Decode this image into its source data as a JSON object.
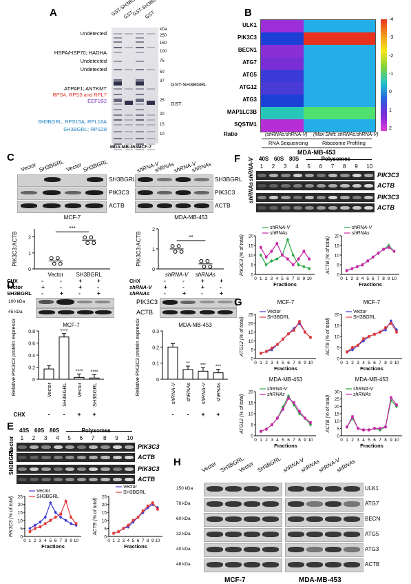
{
  "panelA": {
    "label": "A",
    "lanes": [
      "GST-SH3BGRL",
      "GST",
      "GST-SH3BGRL",
      "GST"
    ],
    "kda": [
      "kDa",
      "250",
      "150",
      "100",
      "75",
      "50",
      "37",
      "25",
      "20",
      "15",
      "10"
    ],
    "bands_left": [
      {
        "text": "Undetected",
        "color": "#000"
      },
      {
        "text": "HSPA/HSP70; HADHA",
        "color": "#000"
      },
      {
        "text": "Undetected",
        "color": "#000"
      },
      {
        "text": "Undetected",
        "color": "#000"
      },
      {
        "text": "ATPAF1; ANTKMT",
        "color": "#000"
      },
      {
        "text": "RPS4, RPS3 and RPL7",
        "color": "#e0301e"
      },
      {
        "text": "EEF1B2",
        "color": "#6a2fb0"
      },
      {
        "text": "SH3BGRL; RPS15A; RPL18A",
        "color": "#1f7fc4"
      },
      {
        "text": "SH3BGRL; RPS28",
        "color": "#1f7fc4"
      }
    ],
    "right_labels": [
      "GST-SH3BGRL",
      "GST"
    ],
    "cells": [
      "MDA-MB-453",
      "MCF-7"
    ]
  },
  "panelB": {
    "label": "B",
    "genes": [
      "ULK1",
      "PIK3C3",
      "BECN1",
      "ATG7",
      "ATG5",
      "ATG12",
      "ATG3",
      "MAP1LC3B",
      "SQSTM1"
    ],
    "ratio_label": "Ratio",
    "col1": "(shRNAs:shRNA-V)",
    "col2": "(Max Shift: shRNAs:shRNA-V)",
    "method1": "RNA Sequencing",
    "method2": "Ribosome Profiling",
    "cell": "MDA-MB-453",
    "scale": [
      "-4",
      "-3",
      "-2",
      "-1",
      "0",
      "1",
      "2"
    ]
  },
  "panelC": {
    "label": "C",
    "left_lanes": [
      "Vector",
      "SH3BGRL",
      "Vector",
      "SH3BGRL"
    ],
    "right_lanes": [
      "shRNA-V",
      "shRNAs",
      "shRNA-V",
      "shRNAs"
    ],
    "proteins": [
      "SH3BGRL-GFP",
      "PIK3C3",
      "ACTB"
    ],
    "proteins_right": [
      "SH3BGRL",
      "PIK3C3",
      "ACTB"
    ],
    "left_chart": {
      "title": "MCF-7",
      "ylabel": "PIK3C3:ACTB",
      "sig": "***",
      "categories": [
        "Vector",
        "SH3BGRL"
      ]
    },
    "right_chart": {
      "title": "MDA-MB-453",
      "ylabel": "PIK3C3:ACTB",
      "sig": "**",
      "categories": [
        "shRNA-V",
        "shRNAs"
      ]
    }
  },
  "panelD": {
    "label": "D",
    "left_rows": [
      {
        "name": "CHX",
        "vals": [
          "-",
          "-",
          "+",
          "+"
        ]
      },
      {
        "name": "Vector",
        "vals": [
          "+",
          "-",
          "+",
          "-"
        ]
      },
      {
        "name": "SH3BGRL",
        "vals": [
          "-",
          "+",
          "-",
          "+"
        ]
      }
    ],
    "right_rows": [
      {
        "name": "CHX",
        "vals": [
          "-",
          "-",
          "+",
          "+"
        ]
      },
      {
        "name": "shRNA-V",
        "vals": [
          "+",
          "-",
          "+",
          "-"
        ]
      },
      {
        "name": "shRNAs",
        "vals": [
          "-",
          "+",
          "-",
          "+"
        ]
      }
    ],
    "left_kda": [
      "100 kDa",
      "45 kDa"
    ],
    "right_proteins": [
      "PIK3C3",
      "ACTB"
    ],
    "left_chart": {
      "title": "MCF-7",
      "ylabel": "Relative PIK3C3 protein expression",
      "categories": [
        "Vector",
        "SH3BGRL",
        "Vector",
        "SH3BGRL"
      ],
      "chx": [
        "-",
        "-",
        "+",
        "+"
      ],
      "sig": [
        "",
        "****",
        "****",
        "****"
      ]
    },
    "right_chart": {
      "title": "MDA-MB-453",
      "ylabel": "Relative PIK3C3 protein expression",
      "categories": [
        "shRNA-V",
        "shRNAs",
        "shRNA-V",
        "shRNAs"
      ],
      "chx": [
        "-",
        "-",
        "+",
        "+"
      ],
      "sig": [
        "",
        "**",
        "***",
        "***"
      ]
    },
    "chx_label": "CHX"
  },
  "panelE": {
    "label": "E",
    "fractions_header": [
      "40S",
      "60S",
      "80S",
      "Polysomes"
    ],
    "fraction_nums": [
      "1",
      "2",
      "3",
      "4",
      "5",
      "6",
      "7",
      "8",
      "9",
      "10"
    ],
    "rows": [
      {
        "group": "Vector",
        "genes": [
          "PIK3C3",
          "ACTB"
        ]
      },
      {
        "group": "SH3BGRL",
        "genes": [
          "PIK3C3",
          "ACTB"
        ]
      }
    ],
    "legend": [
      "Vector",
      "SH3BGRL"
    ],
    "xlabel": "Fractions",
    "ylabel1": "PIK3C3 (% of total)",
    "ylabel2": "ACTB (% of total)"
  },
  "panelF": {
    "label": "F",
    "rows": [
      {
        "group": "shRNA-V",
        "genes": [
          "PIK3C3",
          "ACTB"
        ]
      },
      {
        "group": "shRNAs",
        "genes": [
          "PIK3C3",
          "ACTB"
        ]
      }
    ],
    "legend": [
      "shRNA-V",
      "shRNAs"
    ],
    "xlabel": "Fractions",
    "ylabel1": "PIK3C3 (% of total)",
    "ylabel2": "ACTB (% of total)"
  },
  "panelG": {
    "label": "G",
    "charts": [
      {
        "title": "MCF-7",
        "ylabel": "ATG12 (% of total)",
        "legend": [
          "Vector",
          "SH3BGRL"
        ]
      },
      {
        "title": "MCF-7",
        "ylabel": "ACTB (% of total)",
        "legend": [
          "Vector",
          "SH3BGRL"
        ]
      },
      {
        "title": "MDA-MB-453",
        "ylabel": "ATG12 (% of total)",
        "legend": [
          "shRNA-V",
          "shRNAs"
        ]
      },
      {
        "title": "MDA-MB-453",
        "ylabel": "ACTB (% of total)",
        "legend": [
          "shRNA-V",
          "shRNAs"
        ]
      }
    ],
    "xlabel": "Fractions"
  },
  "panelH": {
    "label": "H",
    "left_lanes": [
      "Vector",
      "SH3BGRL",
      "Vector",
      "SH3BGRL"
    ],
    "right_lanes": [
      "shRNA-V",
      "shRNAs",
      "shRNA-V",
      "shRNAs"
    ],
    "kda": [
      "150 kDa",
      "78 kDa",
      "60 kDa",
      "32 kDa",
      "40 kDa",
      "48 kDa"
    ],
    "proteins": [
      "ULK1",
      "ATG7",
      "BECN",
      "ATG5",
      "ATG3",
      "ACTB"
    ],
    "cells": [
      "MCF-7",
      "MDA-MB-453"
    ]
  },
  "chart_data": [
    {
      "type": "scatter",
      "title": "MCF-7",
      "ylabel": "PIK3C3:ACTB",
      "categories": [
        "Vector",
        "SH3BGRL"
      ],
      "values": [
        0.5,
        1.8
      ],
      "ylim": [
        0,
        2.5
      ]
    },
    {
      "type": "scatter",
      "title": "MDA-MB-453",
      "ylabel": "PIK3C3:ACTB",
      "categories": [
        "shRNA-V",
        "shRNAs"
      ],
      "values": [
        1.0,
        0.25
      ],
      "ylim": [
        0,
        2
      ]
    },
    {
      "type": "bar",
      "title": "MCF-7",
      "ylabel": "Relative PIK3C3 protein expression",
      "categories": [
        "Vector",
        "SH3BGRL",
        "Vector",
        "SH3BGRL"
      ],
      "values": [
        0.17,
        0.7,
        0.03,
        0.02
      ],
      "ylim": [
        0,
        0.8
      ]
    },
    {
      "type": "bar",
      "title": "MDA-MB-453",
      "ylabel": "Relative PIK3C3 protein expression",
      "categories": [
        "shRNA-V",
        "shRNAs",
        "shRNA-V",
        "shRNAs"
      ],
      "values": [
        0.2,
        0.06,
        0.05,
        0.04
      ],
      "ylim": [
        0,
        0.3
      ]
    },
    {
      "type": "line",
      "ylabel": "PIK3C3 (% of total)",
      "x": [
        1,
        2,
        3,
        4,
        5,
        6,
        7,
        8,
        9,
        10
      ],
      "ylim": [
        0,
        25
      ],
      "series": [
        {
          "name": "Vector",
          "values": [
            5,
            7,
            9,
            12,
            21,
            15,
            12,
            10,
            8,
            7
          ]
        },
        {
          "name": "SH3BGRL",
          "values": [
            3,
            5,
            6,
            8,
            10,
            12,
            14,
            22,
            12,
            8
          ]
        }
      ]
    },
    {
      "type": "line",
      "ylabel": "ACTB (% of total)",
      "x": [
        1,
        2,
        3,
        4,
        5,
        6,
        7,
        8,
        9,
        10
      ],
      "ylim": [
        0,
        25
      ],
      "series": [
        {
          "name": "Vector",
          "values": [
            2,
            3,
            5,
            6,
            9,
            12,
            15,
            18,
            20,
            18
          ]
        },
        {
          "name": "SH3BGRL",
          "values": [
            2,
            3,
            5,
            7,
            10,
            12,
            16,
            19,
            21,
            17
          ]
        }
      ]
    },
    {
      "type": "line",
      "ylabel": "PIK3C3 (% of total)",
      "x": [
        1,
        2,
        3,
        4,
        5,
        6,
        7,
        8,
        9,
        10
      ],
      "ylim": [
        0,
        20
      ],
      "series": [
        {
          "name": "shRNA-V",
          "values": [
            10,
            5,
            7,
            8,
            10,
            18,
            10,
            5,
            4,
            3
          ]
        },
        {
          "name": "shRNAs",
          "values": [
            14,
            9,
            12,
            16,
            10,
            8,
            5,
            8,
            12,
            8
          ]
        }
      ]
    },
    {
      "type": "line",
      "ylabel": "ACTB (% of total)",
      "x": [
        1,
        2,
        3,
        4,
        5,
        6,
        7,
        8,
        9,
        10
      ],
      "ylim": [
        0,
        20
      ],
      "series": [
        {
          "name": "shRNA-V",
          "values": [
            2,
            3,
            4,
            5,
            7,
            9,
            11,
            13,
            15,
            12
          ]
        },
        {
          "name": "shRNAs",
          "values": [
            2,
            3,
            4,
            5,
            7,
            9,
            11,
            13,
            14,
            12
          ]
        }
      ]
    },
    {
      "type": "line",
      "title": "MCF-7",
      "ylabel": "ATG12 (% of total)",
      "x": [
        1,
        2,
        3,
        4,
        5,
        6,
        7,
        8,
        9,
        10
      ],
      "ylim": [
        0,
        25
      ],
      "series": [
        {
          "name": "Vector",
          "values": [
            3,
            4,
            5,
            8,
            11,
            14,
            17,
            20,
            15,
            12
          ]
        },
        {
          "name": "SH3BGRL",
          "values": [
            3,
            4,
            6,
            8,
            11,
            14,
            16,
            21,
            15,
            12
          ]
        }
      ]
    },
    {
      "type": "line",
      "title": "MCF-7",
      "ylabel": "ACTB (% of total)",
      "x": [
        1,
        2,
        3,
        4,
        5,
        6,
        7,
        8,
        9,
        10
      ],
      "ylim": [
        0,
        20
      ],
      "series": [
        {
          "name": "Vector",
          "values": [
            3,
            4,
            6,
            8,
            10,
            11,
            12,
            13,
            17,
            13
          ]
        },
        {
          "name": "SH3BGRL",
          "values": [
            3,
            5,
            6,
            9,
            10,
            11,
            12,
            14,
            16,
            12
          ]
        }
      ]
    },
    {
      "type": "line",
      "title": "MDA-MB-453",
      "ylabel": "ATG12 (% of total)",
      "x": [
        1,
        2,
        3,
        4,
        5,
        6,
        7,
        8,
        9,
        10
      ],
      "ylim": [
        0,
        20
      ],
      "series": [
        {
          "name": "shRNA-V",
          "values": [
            2,
            3,
            5,
            8,
            13,
            18,
            14,
            10,
            8,
            5
          ]
        },
        {
          "name": "shRNAs",
          "values": [
            2,
            3,
            5,
            8,
            12,
            17,
            15,
            11,
            8,
            6
          ]
        }
      ]
    },
    {
      "type": "line",
      "title": "MDA-MB-453",
      "ylabel": "ACTB (% of total)",
      "x": [
        1,
        2,
        3,
        4,
        5,
        6,
        7,
        8,
        9,
        10
      ],
      "ylim": [
        0,
        30
      ],
      "series": [
        {
          "name": "shRNA-V",
          "values": [
            6,
            12,
            5,
            4,
            4,
            5,
            4,
            6,
            24,
            20
          ]
        },
        {
          "name": "shRNAs",
          "values": [
            6,
            13,
            5,
            4,
            4,
            5,
            5,
            6,
            26,
            21
          ]
        }
      ]
    }
  ]
}
